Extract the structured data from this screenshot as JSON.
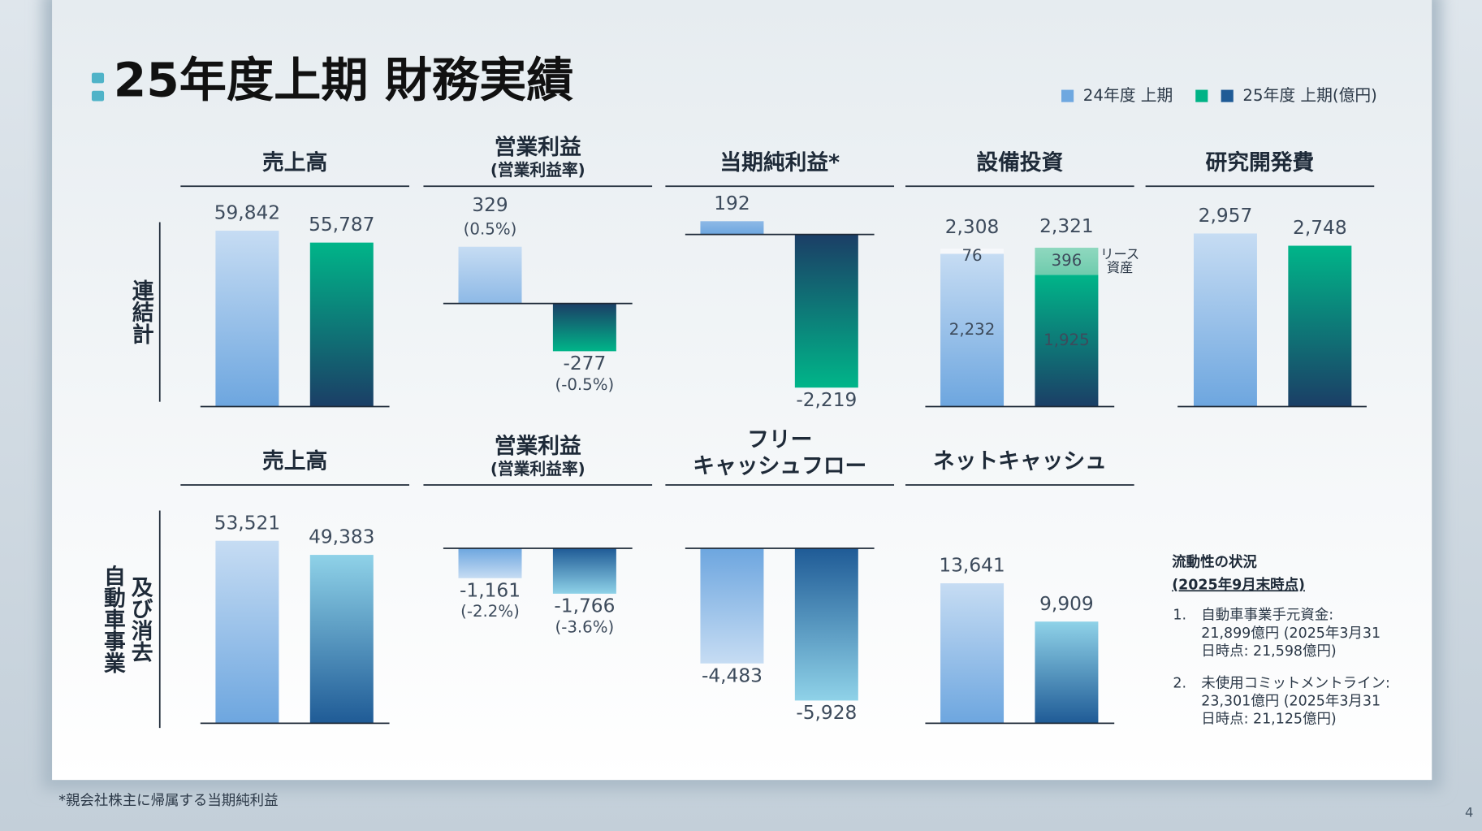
{
  "title": "25年度上期 財務実績",
  "legend": [
    {
      "label": "24年度 上期",
      "colors": [
        "#6fa8e0"
      ]
    },
    {
      "label": "25年度 上期(億円)",
      "colors": [
        "#00b386",
        "#1f5b96"
      ]
    }
  ],
  "row_labels": [
    [
      "連結計"
    ],
    [
      "自動車事業",
      "及び消去"
    ]
  ],
  "chart_data": [
    {
      "type": "bar",
      "title": "売上高",
      "values": [
        59842,
        55787
      ],
      "value_labels": [
        "59,842",
        "55,787"
      ],
      "colors": [
        [
          "#c6dcf3",
          "#6da6df"
        ],
        [
          "#00b589",
          "#1b3e66"
        ]
      ]
    },
    {
      "type": "bar",
      "title": "営業利益",
      "subtitle": "(営業利益率)",
      "values": [
        329,
        -277
      ],
      "value_labels": [
        "329",
        "-277"
      ],
      "rate_labels": [
        "(0.5%)",
        "(-0.5%)"
      ],
      "colors": [
        [
          "#c6dcf3",
          "#8db9e6"
        ],
        [
          "#1b3e66",
          "#00b589"
        ]
      ]
    },
    {
      "type": "bar",
      "title": "当期純利益*",
      "values": [
        192,
        -2219
      ],
      "value_labels": [
        "192",
        "-2,219"
      ],
      "colors": [
        [
          "#8db9e6",
          "#6da6df"
        ],
        [
          "#1b3e66",
          "#00b589"
        ]
      ]
    },
    {
      "type": "stacked_bar",
      "title": "設備投資",
      "series": [
        {
          "values": [
            2232,
            1925
          ],
          "value_labels": [
            "2,232",
            "1,925"
          ],
          "colors": [
            [
              "#c6dcf3",
              "#6da6df"
            ],
            [
              "#00b589",
              "#1b3e66"
            ]
          ]
        },
        {
          "name": [
            "リース",
            "資産"
          ],
          "values": [
            76,
            396
          ],
          "value_labels": [
            "76",
            "396"
          ],
          "colors": [
            [
              "#f6f8fb",
              "#f6f8fb"
            ],
            [
              "#8fd8bf",
              "#6fcbad"
            ]
          ]
        }
      ],
      "totals": [
        2308,
        2321
      ],
      "total_labels": [
        "2,308",
        "2,321"
      ]
    },
    {
      "type": "bar",
      "title": "研究開発費",
      "values": [
        2957,
        2748
      ],
      "value_labels": [
        "2,957",
        "2,748"
      ],
      "colors": [
        [
          "#c6dcf3",
          "#6da6df"
        ],
        [
          "#00b589",
          "#1b3e66"
        ]
      ]
    },
    {
      "type": "bar",
      "title": "売上高",
      "values": [
        53521,
        49383
      ],
      "value_labels": [
        "53,521",
        "49,383"
      ],
      "colors": [
        [
          "#c6dcf3",
          "#6da6df"
        ],
        [
          "#8fd2e8",
          "#1f5b96"
        ]
      ]
    },
    {
      "type": "bar",
      "title": "営業利益",
      "subtitle": "(営業利益率)",
      "values": [
        -1161,
        -1766
      ],
      "value_labels": [
        "-1,161",
        "-1,766"
      ],
      "rate_labels": [
        "(-2.2%)",
        "(-3.6%)"
      ],
      "colors": [
        [
          "#6da6df",
          "#c6dcf3"
        ],
        [
          "#1f5b96",
          "#8fd2e8"
        ]
      ]
    },
    {
      "type": "bar",
      "title": [
        "フリー",
        "キャッシュフロー"
      ],
      "values": [
        -4483,
        -5928
      ],
      "value_labels": [
        "-4,483",
        "-5,928"
      ],
      "colors": [
        [
          "#6da6df",
          "#c6dcf3"
        ],
        [
          "#1f5b96",
          "#8fd2e8"
        ]
      ]
    },
    {
      "type": "bar",
      "title": "ネットキャッシュ",
      "values": [
        13641,
        9909
      ],
      "value_labels": [
        "13,641",
        "9,909"
      ],
      "colors": [
        [
          "#c6dcf3",
          "#6da6df"
        ],
        [
          "#8fd2e8",
          "#1f5b96"
        ]
      ]
    }
  ],
  "notes": {
    "title": "流動性の状況",
    "subtitle": "(2025年9月末時点)",
    "items": [
      {
        "number": "1.",
        "lines": [
          "自動車事業手元資金:",
          "21,899億円 (2025年3月31",
          "日時点: 21,598億円)"
        ]
      },
      {
        "number": "2.",
        "lines": [
          "未使用コミットメントライン:",
          "23,301億円 (2025年3月31",
          "日時点: 21,125億円)"
        ]
      }
    ]
  },
  "footnote": "*親会社株主に帰属する当期純利益",
  "page_number": "4"
}
